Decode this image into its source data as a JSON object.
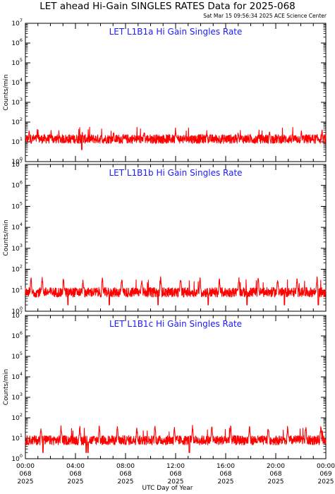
{
  "header": {
    "title": "LET ahead Hi-Gain SINGLES RATES Data for 2025-068",
    "timestamp": "Sat Mar 15 09:56:34 2025 ACE Science Center"
  },
  "x_axis_title": "UTC Day of Year",
  "colors": {
    "series": "#ff0000",
    "panel_title": "#1a1aff",
    "axes": "#000000"
  },
  "chart_data": [
    {
      "type": "line",
      "title": "LET L1B1a Hi Gain Singles Rate",
      "ylabel": "Counts/min",
      "yscale": "log",
      "ylim": [
        1,
        10000000
      ],
      "xlim": [
        0,
        24
      ],
      "baseline": 14,
      "spikes": [
        0.3,
        2.05,
        4.55,
        7.05,
        9.5,
        12.0,
        14.5,
        17.0,
        19.5,
        22.05,
        23.7
      ],
      "spike_peak": 32,
      "dips": [
        4.5
      ],
      "dip_value": 4
    },
    {
      "type": "line",
      "title": "LET L1B1b Hi Gain Singles Rate",
      "ylabel": "Counts/min",
      "yscale": "log",
      "ylim": [
        1,
        10000000
      ],
      "xlim": [
        0,
        24
      ],
      "baseline": 8,
      "spikes": [
        0.45,
        1.35,
        3.05,
        4.6,
        6.15,
        7.7,
        9.3,
        10.8,
        12.4,
        13.95,
        15.5,
        17.05,
        18.6,
        20.15,
        21.7,
        23.3
      ],
      "spike_peak": 35,
      "dips": [
        3.4,
        6.7,
        10.6,
        14.6,
        17.7,
        20.7,
        23.4
      ],
      "dip_value": 2
    },
    {
      "type": "line",
      "title": "LET L1B1c Hi Gain Singles Rate",
      "ylabel": "Counts/min",
      "yscale": "log",
      "ylim": [
        1,
        10000000
      ],
      "xlim": [
        0,
        24
      ],
      "baseline": 8,
      "spikes": [
        1.25,
        2.85,
        4.35,
        5.9,
        7.35,
        8.9,
        10.35,
        11.9,
        13.35,
        14.9,
        16.4,
        17.9,
        19.4,
        20.95,
        22.4,
        23.6
      ],
      "spike_peak": 35,
      "dips": [
        4.85,
        5.0,
        1.4,
        13.1
      ],
      "dip_value": 2
    }
  ],
  "y_ticks": [
    {
      "base": "10",
      "exp": "0"
    },
    {
      "base": "10",
      "exp": "1"
    },
    {
      "base": "10",
      "exp": "2"
    },
    {
      "base": "10",
      "exp": "3"
    },
    {
      "base": "10",
      "exp": "4"
    },
    {
      "base": "10",
      "exp": "5"
    },
    {
      "base": "10",
      "exp": "6"
    },
    {
      "base": "10",
      "exp": "7"
    }
  ],
  "x_ticks": [
    {
      "x": 0,
      "time": "00:00",
      "doy": "068",
      "year": "2025"
    },
    {
      "x": 4,
      "time": "04:00",
      "doy": "068",
      "year": "2025"
    },
    {
      "x": 8,
      "time": "08:00",
      "doy": "068",
      "year": "2025"
    },
    {
      "x": 12,
      "time": "12:00",
      "doy": "068",
      "year": "2025"
    },
    {
      "x": 16,
      "time": "16:00",
      "doy": "068",
      "year": "2025"
    },
    {
      "x": 20,
      "time": "20:00",
      "doy": "068",
      "year": "2025"
    },
    {
      "x": 24,
      "time": "00:00",
      "doy": "069",
      "year": "2025"
    }
  ]
}
